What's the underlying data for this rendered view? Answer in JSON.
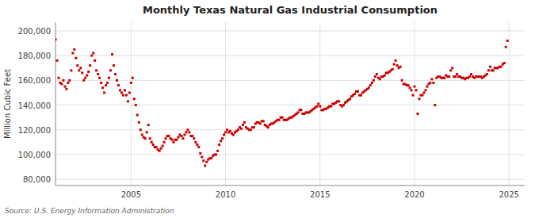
{
  "chart_data": {
    "type": "scatter",
    "title": "Monthly Texas Natural Gas Industrial Consumption",
    "ylabel": "Million Cubic Feet",
    "annotations": [
      "Source: U.S. Energy Information Administration"
    ],
    "color": "#cc0000",
    "marker": "square",
    "grid": true,
    "xlim": [
      2001.0,
      2025.83
    ],
    "ylim": [
      75000,
      207000
    ],
    "xticks": [
      2005,
      2010,
      2015,
      2020,
      2025
    ],
    "yticks": [
      {
        "value": 80000,
        "label": "80,000"
      },
      {
        "value": 100000,
        "label": "100,000"
      },
      {
        "value": 120000,
        "label": "120,000"
      },
      {
        "value": 140000,
        "label": "140,000"
      },
      {
        "value": 160000,
        "label": "160,000"
      },
      {
        "value": 180000,
        "label": "180,000"
      },
      {
        "value": 200000,
        "label": "200,000"
      }
    ],
    "x": [
      2001.0,
      2001.083,
      2001.167,
      2001.25,
      2001.333,
      2001.417,
      2001.5,
      2001.583,
      2001.667,
      2001.75,
      2001.833,
      2001.917,
      2002.0,
      2002.083,
      2002.167,
      2002.25,
      2002.333,
      2002.417,
      2002.5,
      2002.583,
      2002.667,
      2002.75,
      2002.833,
      2002.917,
      2003.0,
      2003.083,
      2003.167,
      2003.25,
      2003.333,
      2003.417,
      2003.5,
      2003.583,
      2003.667,
      2003.75,
      2003.833,
      2003.917,
      2004.0,
      2004.083,
      2004.167,
      2004.25,
      2004.333,
      2004.417,
      2004.5,
      2004.583,
      2004.667,
      2004.75,
      2004.833,
      2004.917,
      2005.0,
      2005.083,
      2005.167,
      2005.25,
      2005.333,
      2005.417,
      2005.5,
      2005.583,
      2005.667,
      2005.75,
      2005.833,
      2005.917,
      2006.0,
      2006.083,
      2006.167,
      2006.25,
      2006.333,
      2006.417,
      2006.5,
      2006.583,
      2006.667,
      2006.75,
      2006.833,
      2006.917,
      2007.0,
      2007.083,
      2007.167,
      2007.25,
      2007.333,
      2007.417,
      2007.5,
      2007.583,
      2007.667,
      2007.75,
      2007.833,
      2007.917,
      2008.0,
      2008.083,
      2008.167,
      2008.25,
      2008.333,
      2008.417,
      2008.5,
      2008.583,
      2008.667,
      2008.75,
      2008.833,
      2008.917,
      2009.0,
      2009.083,
      2009.167,
      2009.25,
      2009.333,
      2009.417,
      2009.5,
      2009.583,
      2009.667,
      2009.75,
      2009.833,
      2009.917,
      2010.0,
      2010.083,
      2010.167,
      2010.25,
      2010.333,
      2010.417,
      2010.5,
      2010.583,
      2010.667,
      2010.75,
      2010.833,
      2010.917,
      2011.0,
      2011.083,
      2011.167,
      2011.25,
      2011.333,
      2011.417,
      2011.5,
      2011.583,
      2011.667,
      2011.75,
      2011.833,
      2011.917,
      2012.0,
      2012.083,
      2012.167,
      2012.25,
      2012.333,
      2012.417,
      2012.5,
      2012.583,
      2012.667,
      2012.75,
      2012.833,
      2012.917,
      2013.0,
      2013.083,
      2013.167,
      2013.25,
      2013.333,
      2013.417,
      2013.5,
      2013.583,
      2013.667,
      2013.75,
      2013.833,
      2013.917,
      2014.0,
      2014.083,
      2014.167,
      2014.25,
      2014.333,
      2014.417,
      2014.5,
      2014.583,
      2014.667,
      2014.75,
      2014.833,
      2014.917,
      2015.0,
      2015.083,
      2015.167,
      2015.25,
      2015.333,
      2015.417,
      2015.5,
      2015.583,
      2015.667,
      2015.75,
      2015.833,
      2015.917,
      2016.0,
      2016.083,
      2016.167,
      2016.25,
      2016.333,
      2016.417,
      2016.5,
      2016.583,
      2016.667,
      2016.75,
      2016.833,
      2016.917,
      2017.0,
      2017.083,
      2017.167,
      2017.25,
      2017.333,
      2017.417,
      2017.5,
      2017.583,
      2017.667,
      2017.75,
      2017.833,
      2017.917,
      2018.0,
      2018.083,
      2018.167,
      2018.25,
      2018.333,
      2018.417,
      2018.5,
      2018.583,
      2018.667,
      2018.75,
      2018.833,
      2018.917,
      2019.0,
      2019.083,
      2019.167,
      2019.25,
      2019.333,
      2019.417,
      2019.5,
      2019.583,
      2019.667,
      2019.75,
      2019.833,
      2019.917,
      2020.0,
      2020.083,
      2020.167,
      2020.25,
      2020.333,
      2020.417,
      2020.5,
      2020.583,
      2020.667,
      2020.75,
      2020.833,
      2020.917,
      2021.0,
      2021.083,
      2021.167,
      2021.25,
      2021.333,
      2021.417,
      2021.5,
      2021.583,
      2021.667,
      2021.75,
      2021.833,
      2021.917,
      2022.0,
      2022.083,
      2022.167,
      2022.25,
      2022.333,
      2022.417,
      2022.5,
      2022.583,
      2022.667,
      2022.75,
      2022.833,
      2022.917,
      2023.0,
      2023.083,
      2023.167,
      2023.25,
      2023.333,
      2023.417,
      2023.5,
      2023.583,
      2023.667,
      2023.75,
      2023.833,
      2023.917,
      2024.0,
      2024.083,
      2024.167,
      2024.25,
      2024.333,
      2024.417,
      2024.5,
      2024.583,
      2024.667,
      2024.75,
      2024.833,
      2024.917
    ],
    "values": [
      193000,
      176000,
      162000,
      158000,
      157000,
      160000,
      155000,
      153000,
      158000,
      160000,
      168000,
      182000,
      185000,
      178000,
      172000,
      168000,
      170000,
      166000,
      160000,
      162000,
      164000,
      167000,
      172000,
      180000,
      182000,
      176000,
      168000,
      165000,
      162000,
      158000,
      154000,
      150000,
      156000,
      158000,
      162000,
      168000,
      181000,
      172000,
      165000,
      160000,
      156000,
      152000,
      150000,
      148000,
      152000,
      148000,
      143000,
      150000,
      158000,
      162000,
      145000,
      140000,
      132000,
      126000,
      120000,
      116000,
      114000,
      113000,
      118000,
      124000,
      113000,
      110000,
      108000,
      106000,
      106000,
      104000,
      103000,
      105000,
      107000,
      110000,
      113000,
      115000,
      115000,
      113000,
      112000,
      110000,
      112000,
      112000,
      114000,
      116000,
      115000,
      113000,
      116000,
      118000,
      120000,
      118000,
      115000,
      115000,
      113000,
      110000,
      108000,
      106000,
      101000,
      98000,
      95000,
      91000,
      94000,
      96000,
      97000,
      97000,
      99000,
      100000,
      100000,
      103000,
      108000,
      111000,
      113000,
      116000,
      118000,
      120000,
      118000,
      119000,
      117000,
      116000,
      118000,
      119000,
      120000,
      122000,
      121000,
      124000,
      126000,
      122000,
      121000,
      120000,
      120000,
      122000,
      122000,
      125000,
      126000,
      126000,
      125000,
      127000,
      127000,
      124000,
      123000,
      122000,
      124000,
      125000,
      125000,
      126000,
      127000,
      128000,
      128000,
      130000,
      130000,
      128000,
      128000,
      128000,
      129000,
      130000,
      130000,
      131000,
      132000,
      133000,
      134000,
      136000,
      136000,
      133000,
      133000,
      134000,
      134000,
      134000,
      135000,
      136000,
      137000,
      138000,
      139000,
      141000,
      139000,
      136000,
      136000,
      137000,
      137000,
      138000,
      139000,
      139000,
      141000,
      141000,
      142000,
      143000,
      143000,
      140000,
      139000,
      140000,
      142000,
      143000,
      144000,
      145000,
      147000,
      148000,
      149000,
      151000,
      151000,
      148000,
      148000,
      150000,
      151000,
      152000,
      153000,
      154000,
      156000,
      158000,
      160000,
      163000,
      165000,
      162000,
      161000,
      163000,
      163000,
      164000,
      166000,
      166000,
      167000,
      168000,
      169000,
      173000,
      176000,
      172000,
      170000,
      171000,
      160000,
      157000,
      157000,
      156000,
      156000,
      154000,
      152000,
      148000,
      155000,
      152000,
      133000,
      145000,
      148000,
      148000,
      150000,
      152000,
      155000,
      157000,
      158000,
      161000,
      158000,
      140000,
      162000,
      163000,
      163000,
      162000,
      162000,
      162000,
      164000,
      163000,
      163000,
      168000,
      170000,
      163000,
      163000,
      165000,
      163000,
      163000,
      162000,
      162000,
      161000,
      162000,
      162000,
      163000,
      165000,
      163000,
      162000,
      163000,
      163000,
      163000,
      163000,
      162000,
      163000,
      164000,
      165000,
      168000,
      171000,
      168000,
      168000,
      170000,
      170000,
      170000,
      171000,
      171000,
      173000,
      174000,
      187000,
      192000
    ]
  }
}
